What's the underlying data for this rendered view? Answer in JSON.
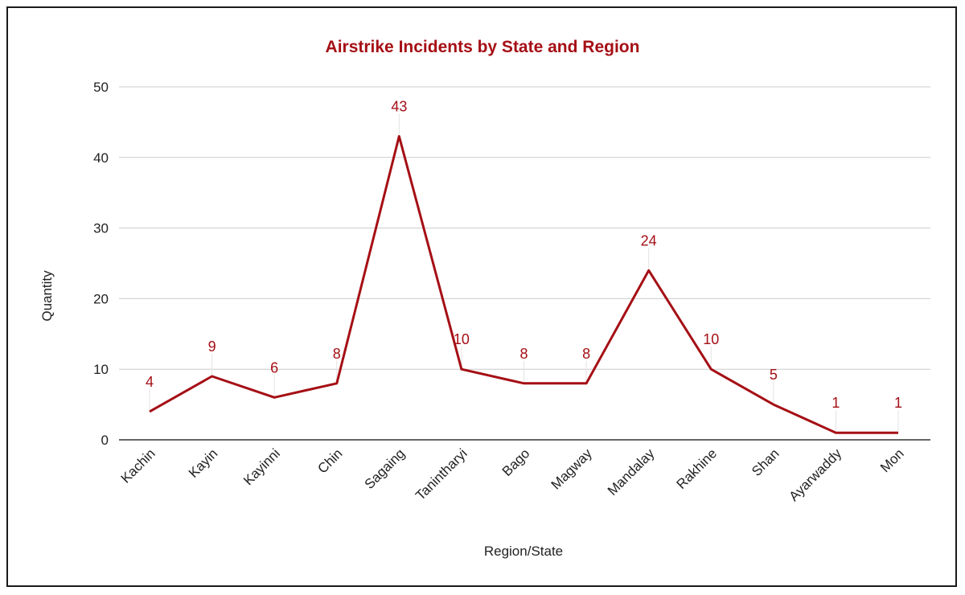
{
  "chart_data": {
    "type": "line",
    "title": "Airstrike Incidents by State and Region",
    "xlabel": "Region/State",
    "ylabel": "Quantity",
    "categories": [
      "Kachin",
      "Kayin",
      "Kayinni",
      "Chin",
      "Sagaing",
      "Tanintharyi",
      "Bago",
      "Magway",
      "Mandalay",
      "Rakhine",
      "Shan",
      "Ayarwaddy",
      "Mon"
    ],
    "series": [
      {
        "values": [
          4,
          9,
          6,
          8,
          43,
          10,
          8,
          8,
          24,
          10,
          5,
          1,
          1
        ]
      }
    ],
    "ylim": [
      0,
      50
    ],
    "yticks": [
      0,
      10,
      20,
      30,
      40,
      50
    ],
    "grid": true,
    "data_labels": true,
    "colors": {
      "line": "#a50f15",
      "title": "#a50f15",
      "grid": "#cccccc",
      "axis": "#333333"
    }
  }
}
